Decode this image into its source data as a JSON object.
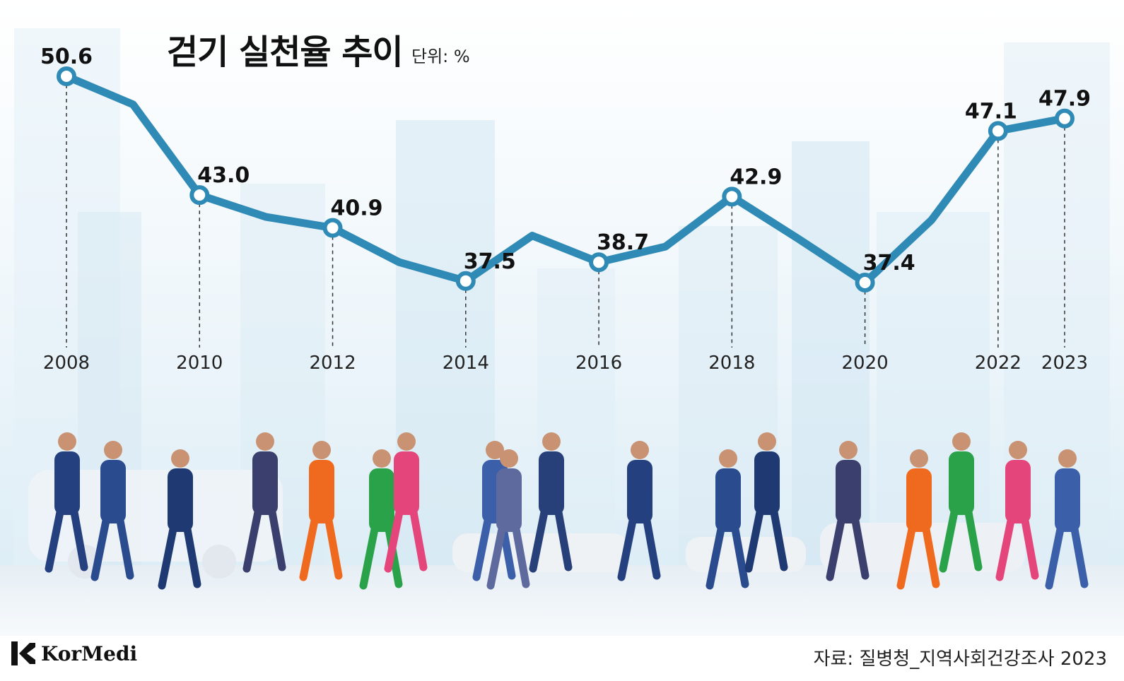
{
  "header": {
    "title": "걷기 실천율 추이",
    "unit": "단위: %"
  },
  "footer": {
    "brand": "KorMedi",
    "source": "자료: 질병청_지역사회건강조사 2023"
  },
  "colors": {
    "line": "#2f8bb5",
    "marker_fill": "#ffffff",
    "text": "#111111",
    "sky_top": "#f4fafd",
    "sky_bottom": "#dcedf7",
    "floor": "#eef3f7"
  },
  "chart_data": {
    "type": "line",
    "title": "걷기 실천율 추이",
    "unit": "단위: %",
    "x": [
      2008,
      2009,
      2010,
      2011,
      2012,
      2013,
      2014,
      2015,
      2016,
      2017,
      2018,
      2019,
      2020,
      2021,
      2022,
      2023
    ],
    "tick_labels": [
      "2008",
      "2010",
      "2012",
      "2014",
      "2016",
      "2018",
      "2020",
      "2022",
      "2023"
    ],
    "series": [
      {
        "values": [
          50.6,
          48.8,
          43.0,
          41.6,
          40.9,
          38.7,
          37.5,
          40.4,
          38.7,
          39.7,
          42.9,
          40.2,
          37.4,
          41.4,
          47.1,
          47.9
        ]
      }
    ],
    "labeled_points": [
      {
        "x": 2008,
        "label": "50.6"
      },
      {
        "x": 2010,
        "label": "43.0"
      },
      {
        "x": 2012,
        "label": "40.9"
      },
      {
        "x": 2014,
        "label": "37.5"
      },
      {
        "x": 2016,
        "label": "38.7"
      },
      {
        "x": 2018,
        "label": "42.9"
      },
      {
        "x": 2020,
        "label": "37.4"
      },
      {
        "x": 2022,
        "label": "47.1"
      },
      {
        "x": 2023,
        "label": "47.9"
      }
    ],
    "ylim": [
      35.3,
      52.8
    ],
    "grid": false,
    "legend": "none"
  }
}
